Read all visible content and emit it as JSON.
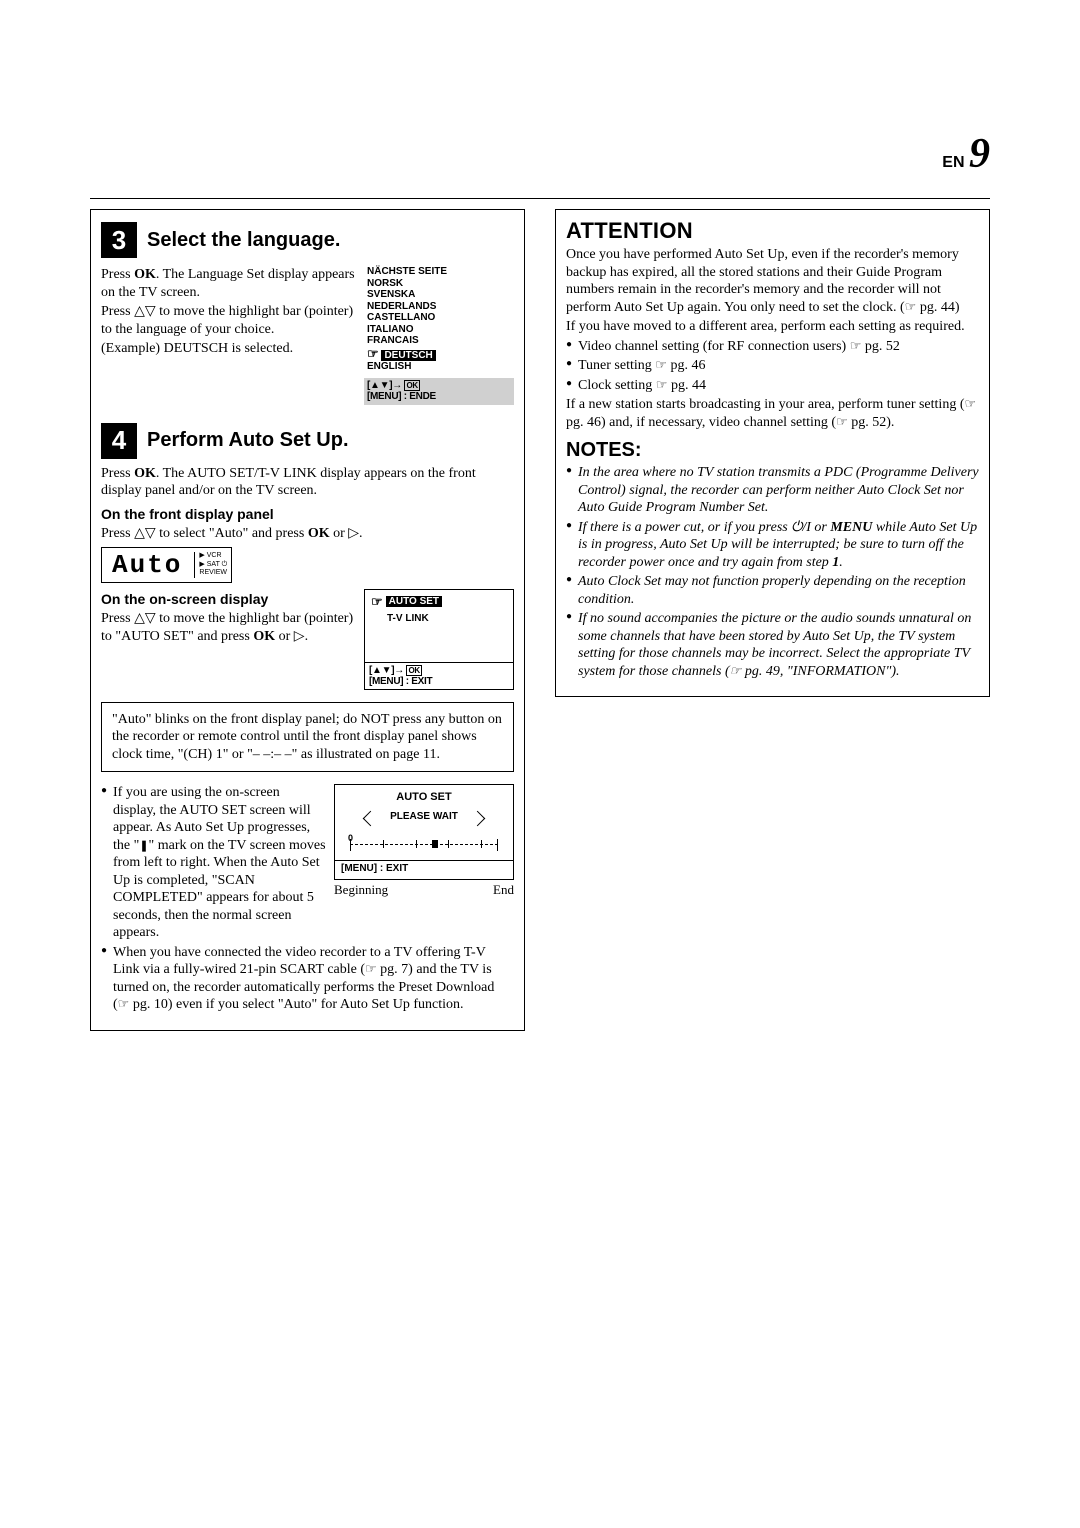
{
  "page_number": {
    "prefix": "EN",
    "value": "9"
  },
  "step3": {
    "num": "3",
    "title": "Select the language.",
    "text1a": "Press ",
    "ok": "OK",
    "text1b": ". The Language Set display appears on the TV screen.",
    "text2a": "Press ",
    "text2b": " to move the highlight bar (pointer) to the language of your choice.",
    "example": "(Example) DEUTSCH is selected.",
    "languages": [
      "NÄCHSTE SEITE",
      "NORSK",
      "SVENSKA",
      "NEDERLANDS",
      "CASTELLANO",
      "ITALIANO",
      "FRANCAIS",
      "DEUTSCH",
      "ENGLISH"
    ],
    "lang_selected_index": 7,
    "lang_footer_menu": "[MENU] : ENDE"
  },
  "step4": {
    "num": "4",
    "title": "Perform Auto Set Up.",
    "line1a": "Press ",
    "line1b": ". The AUTO SET/T-V LINK display appears on the front display panel and/or on the TV screen.",
    "front_panel_head": "On the front display panel",
    "fp_text_a": "Press ",
    "fp_text_b": " to select \"Auto\" and press ",
    "fp_text_c": " or ",
    "fp_text_d": ".",
    "seg_text": "Auto",
    "seg_side": [
      "▶ VCR",
      "▶ SAT ⏻",
      "REVIEW"
    ],
    "osd_head": "On the on-screen display",
    "osd_text_a": "Press ",
    "osd_text_b": " to move the highlight bar (pointer) to \"AUTO SET\" and press ",
    "osd_text_c": " or ",
    "osd_text_d": ".",
    "tv_item1": "AUTO SET",
    "tv_item2": "T-V LINK",
    "tv_footer_menu": "[MENU] : EXIT",
    "advice": "\"Auto\" blinks on the front display panel; do NOT press any button on the recorder or remote control until the front display panel shows clock time, \"(CH) 1\" or \"– –:– –\" as illustrated on page 11.",
    "bullet1a": "If you are using the on-screen display, the AUTO SET screen will appear. As Auto Set Up progresses, the \"",
    "bullet1b": "\" mark on the TV screen moves from left to right. When the Auto Set Up is completed, \"SCAN COMPLETED\" appears for about 5 seconds, then the normal screen appears.",
    "progress_title": "AUTO SET",
    "please_wait": "PLEASE WAIT",
    "prog_footer": "[MENU] : EXIT",
    "beginning": "Beginning",
    "end": "End",
    "bullet2a": "When you have connected the video recorder to a TV offering T-V Link via a fully-wired 21-pin SCART cable (",
    "bullet2b": " pg. 7) and the TV is turned on, the recorder automatically performs the Preset Download (",
    "bullet2c": " pg. 10) even if you select \"Auto\" for Auto Set Up function."
  },
  "attention": {
    "title": "ATTENTION",
    "p1a": "Once you have performed Auto Set Up, even if the recorder's memory backup has expired, all the stored stations and their Guide Program numbers remain in the recorder's memory and the recorder will not perform Auto Set Up again. You only need to set the clock. (",
    "p1b": " pg. 44)",
    "p2": "If you have moved to a different area, perform each setting as required.",
    "b1a": "Video channel setting (for RF connection users) ",
    "b1b": " pg. 52",
    "b2a": "Tuner setting ",
    "b2b": " pg. 46",
    "b3a": "Clock setting ",
    "b3b": " pg. 44",
    "p3a": "If a new station starts broadcasting in your area, perform tuner setting (",
    "p3b": " pg. 46) and, if necessary, video channel setting (",
    "p3c": " pg. 52)."
  },
  "notes": {
    "title": "NOTES:",
    "n1": "In the area where no TV station transmits a PDC (Programme Delivery Control) signal, the recorder can perform neither Auto Clock Set nor Auto Guide Program Number Set.",
    "n2a": "If there is a power cut, or if you press ",
    "n2b": " or ",
    "menu": "MENU",
    "n2c": " while Auto Set Up is in progress, Auto Set Up will be interrupted; be sure to turn off the recorder power once and try again from step ",
    "n2d": "1",
    "n2e": ".",
    "n3": "Auto Clock Set may not function properly depending on the reception condition.",
    "n4a": "If no sound accompanies the picture or the audio sounds unnatural on some channels that have been stored by Auto Set Up, the TV system setting for those channels may be incorrect. Select the appropriate TV system for those channels (",
    "n4b": " pg. 49, \"INFORMATION\")."
  }
}
